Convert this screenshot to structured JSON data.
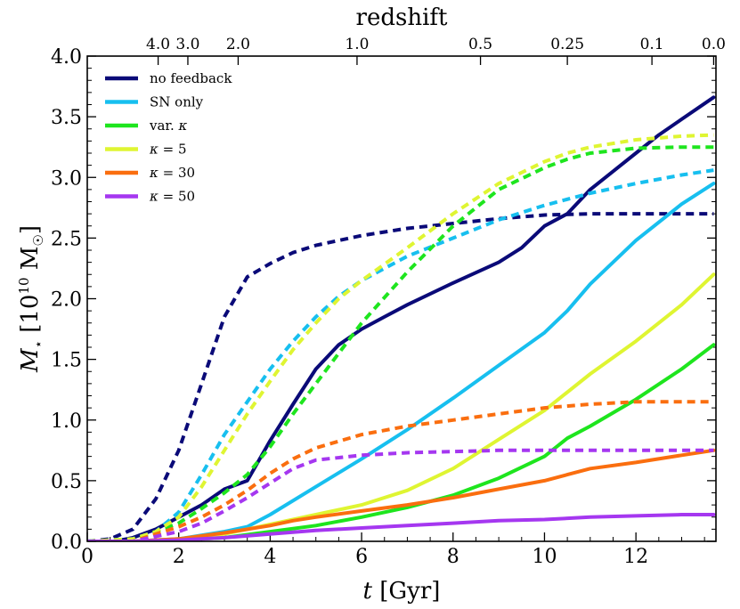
{
  "chart_data": {
    "type": "line",
    "xlabel_var": "t",
    "xlabel_unit": "[Gyr]",
    "ylabel_var": "M",
    "ylabel_sub": "⋆",
    "ylabel_unit_pre": "[10",
    "ylabel_unit_exp": "10",
    "ylabel_unit_post": "M",
    "ylabel_unit_sub": "☉",
    "ylabel_unit_close": "]",
    "top_axis_label": "redshift",
    "xlim": [
      0,
      13.75
    ],
    "ylim": [
      0,
      4.0
    ],
    "x_ticks": [
      0,
      2,
      4,
      6,
      8,
      10,
      12
    ],
    "x_tick_labels": [
      "0",
      "2",
      "4",
      "6",
      "8",
      "10",
      "12"
    ],
    "y_ticks": [
      0,
      0.5,
      1.0,
      1.5,
      2.0,
      2.5,
      3.0,
      3.5,
      4.0
    ],
    "y_tick_labels": [
      "0.0",
      "0.5",
      "1.0",
      "1.5",
      "2.0",
      "2.5",
      "3.0",
      "3.5",
      "4.0"
    ],
    "redshift_ticks": [
      {
        "label": "4.0",
        "t": 1.55
      },
      {
        "label": "3.0",
        "t": 2.2
      },
      {
        "label": "2.0",
        "t": 3.3
      },
      {
        "label": "1.0",
        "t": 5.9
      },
      {
        "label": "0.5",
        "t": 8.6
      },
      {
        "label": "0.25",
        "t": 10.5
      },
      {
        "label": "0.1",
        "t": 12.35
      },
      {
        "label": "0.0",
        "t": 13.7
      }
    ],
    "legend_position": "top-left",
    "series": [
      {
        "name": "no feedback",
        "color": "#0a0a78",
        "dashed_is_other_component": true,
        "solid": {
          "x": [
            0,
            0.6,
            1,
            1.5,
            2,
            2.5,
            3,
            3.5,
            4,
            4.5,
            5,
            5.5,
            6,
            6.5,
            7,
            8,
            9,
            9.5,
            10,
            10.5,
            11,
            11.5,
            12,
            12.5,
            13,
            13.7
          ],
          "y": [
            0,
            0,
            0.03,
            0.1,
            0.2,
            0.3,
            0.43,
            0.5,
            0.83,
            1.13,
            1.42,
            1.62,
            1.75,
            1.85,
            1.95,
            2.13,
            2.3,
            2.42,
            2.6,
            2.7,
            2.9,
            3.05,
            3.2,
            3.35,
            3.48,
            3.66
          ]
        },
        "dashed": {
          "x": [
            0,
            0.5,
            1,
            1.5,
            2,
            2.5,
            3,
            3.5,
            4,
            4.5,
            5,
            6,
            7,
            8,
            9,
            10,
            11,
            12,
            13,
            13.7
          ],
          "y": [
            0,
            0.02,
            0.1,
            0.35,
            0.75,
            1.3,
            1.85,
            2.18,
            2.29,
            2.38,
            2.44,
            2.52,
            2.58,
            2.62,
            2.66,
            2.69,
            2.7,
            2.7,
            2.7,
            2.7
          ]
        }
      },
      {
        "name": "SN only",
        "color": "#17bfef",
        "solid": {
          "x": [
            0,
            1,
            2,
            3,
            3.5,
            4,
            5,
            6,
            7,
            8,
            9,
            10,
            10.5,
            11,
            12,
            13,
            13.7
          ],
          "y": [
            0,
            0,
            0.02,
            0.08,
            0.12,
            0.22,
            0.45,
            0.68,
            0.92,
            1.18,
            1.45,
            1.72,
            1.9,
            2.12,
            2.48,
            2.78,
            2.95
          ]
        },
        "dashed": {
          "x": [
            0,
            1,
            1.5,
            2,
            2.5,
            3,
            3.5,
            4,
            4.5,
            5,
            5.5,
            6,
            7,
            8,
            9,
            10,
            11,
            12,
            13,
            13.7
          ],
          "y": [
            0,
            0.02,
            0.08,
            0.24,
            0.55,
            0.88,
            1.15,
            1.42,
            1.65,
            1.85,
            2.02,
            2.15,
            2.35,
            2.5,
            2.65,
            2.77,
            2.87,
            2.95,
            3.02,
            3.06
          ]
        }
      },
      {
        "name": "var. κ",
        "color": "#1ee51e",
        "solid": {
          "x": [
            0,
            1,
            2,
            3,
            4,
            5,
            6,
            7,
            8,
            9,
            10,
            10.5,
            11,
            12,
            13,
            13.7
          ],
          "y": [
            0,
            0,
            0.01,
            0.03,
            0.08,
            0.13,
            0.2,
            0.28,
            0.38,
            0.52,
            0.7,
            0.85,
            0.95,
            1.17,
            1.42,
            1.62
          ]
        },
        "dashed": {
          "x": [
            0,
            1,
            2,
            2.5,
            3,
            3.5,
            4,
            4.5,
            5,
            5.5,
            6,
            7,
            8,
            9,
            10,
            10.5,
            11,
            12,
            13,
            13.7
          ],
          "y": [
            0,
            0.01,
            0.15,
            0.27,
            0.4,
            0.55,
            0.78,
            1.05,
            1.3,
            1.55,
            1.8,
            2.22,
            2.6,
            2.9,
            3.08,
            3.15,
            3.2,
            3.24,
            3.25,
            3.25
          ]
        }
      },
      {
        "name": "κ = 5",
        "color": "#dff532",
        "solid": {
          "x": [
            0,
            1,
            2,
            3,
            4,
            5,
            6,
            7,
            8,
            9,
            10,
            11,
            12,
            13,
            13.7
          ],
          "y": [
            0,
            0,
            0.01,
            0.06,
            0.14,
            0.22,
            0.3,
            0.42,
            0.6,
            0.84,
            1.08,
            1.38,
            1.65,
            1.95,
            2.2
          ]
        },
        "dashed": {
          "x": [
            0,
            1,
            1.5,
            2,
            2.5,
            3,
            3.5,
            4,
            4.5,
            5,
            5.5,
            6,
            7,
            8,
            9,
            10,
            10.5,
            11,
            12,
            13,
            13.7
          ],
          "y": [
            0,
            0.02,
            0.08,
            0.2,
            0.45,
            0.75,
            1.05,
            1.32,
            1.58,
            1.8,
            2.0,
            2.15,
            2.42,
            2.7,
            2.95,
            3.13,
            3.2,
            3.25,
            3.31,
            3.34,
            3.35
          ]
        }
      },
      {
        "name": "κ = 30",
        "color": "#fa6e0f",
        "solid": {
          "x": [
            0,
            1,
            2,
            3,
            4,
            4.5,
            5,
            6,
            7,
            8,
            9,
            10,
            10.5,
            11,
            12,
            13,
            13.7
          ],
          "y": [
            0,
            0,
            0.02,
            0.07,
            0.13,
            0.17,
            0.2,
            0.25,
            0.3,
            0.36,
            0.43,
            0.5,
            0.55,
            0.6,
            0.65,
            0.71,
            0.75
          ]
        },
        "dashed": {
          "x": [
            0,
            1,
            2,
            2.5,
            3,
            3.5,
            4,
            4.5,
            5,
            6,
            7,
            8,
            9,
            10,
            11,
            12,
            13,
            13.7
          ],
          "y": [
            0,
            0,
            0.12,
            0.2,
            0.3,
            0.42,
            0.56,
            0.68,
            0.77,
            0.88,
            0.95,
            1.0,
            1.05,
            1.1,
            1.13,
            1.15,
            1.15,
            1.15
          ]
        }
      },
      {
        "name": "κ = 50",
        "color": "#a537f0",
        "solid": {
          "x": [
            0,
            1,
            2,
            3,
            4,
            5,
            6,
            7,
            8,
            9,
            10,
            11,
            12,
            13,
            13.7
          ],
          "y": [
            0,
            0,
            0.01,
            0.03,
            0.06,
            0.09,
            0.11,
            0.13,
            0.15,
            0.17,
            0.18,
            0.2,
            0.21,
            0.22,
            0.22
          ]
        },
        "dashed": {
          "x": [
            0,
            1,
            2,
            2.5,
            3,
            3.5,
            4,
            4.5,
            5,
            6,
            7,
            8,
            9,
            10,
            11,
            12,
            13,
            13.7
          ],
          "y": [
            0,
            0,
            0.08,
            0.15,
            0.25,
            0.36,
            0.48,
            0.6,
            0.67,
            0.71,
            0.73,
            0.74,
            0.75,
            0.75,
            0.75,
            0.75,
            0.75,
            0.75
          ]
        }
      }
    ]
  }
}
